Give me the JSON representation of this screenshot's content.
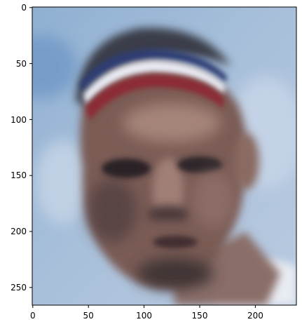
{
  "figure": {
    "image_subject": "blurred-face-photo",
    "x_axis": {
      "ticks": [
        "0",
        "50",
        "100",
        "150",
        "200"
      ],
      "tick_values": [
        0,
        50,
        100,
        150,
        200
      ],
      "range": [
        -0.5,
        237.5
      ]
    },
    "y_axis": {
      "ticks": [
        "0",
        "50",
        "100",
        "150",
        "200",
        "250"
      ],
      "tick_values": [
        0,
        50,
        100,
        150,
        200,
        250
      ],
      "range": [
        -0.5,
        265.5
      ],
      "inverted": true
    },
    "colors": {
      "sky": "#9fb8d4",
      "sky_light": "#bccde2",
      "hair": "#3b3f4a",
      "headband_white": "#e6e8f0",
      "headband_red": "#8c2a34",
      "headband_blue": "#2f3d73",
      "skin": "#7d5f58",
      "skin_light": "#a48278",
      "skin_dark": "#4c3a3a",
      "shirt": "#eef0f5"
    }
  }
}
